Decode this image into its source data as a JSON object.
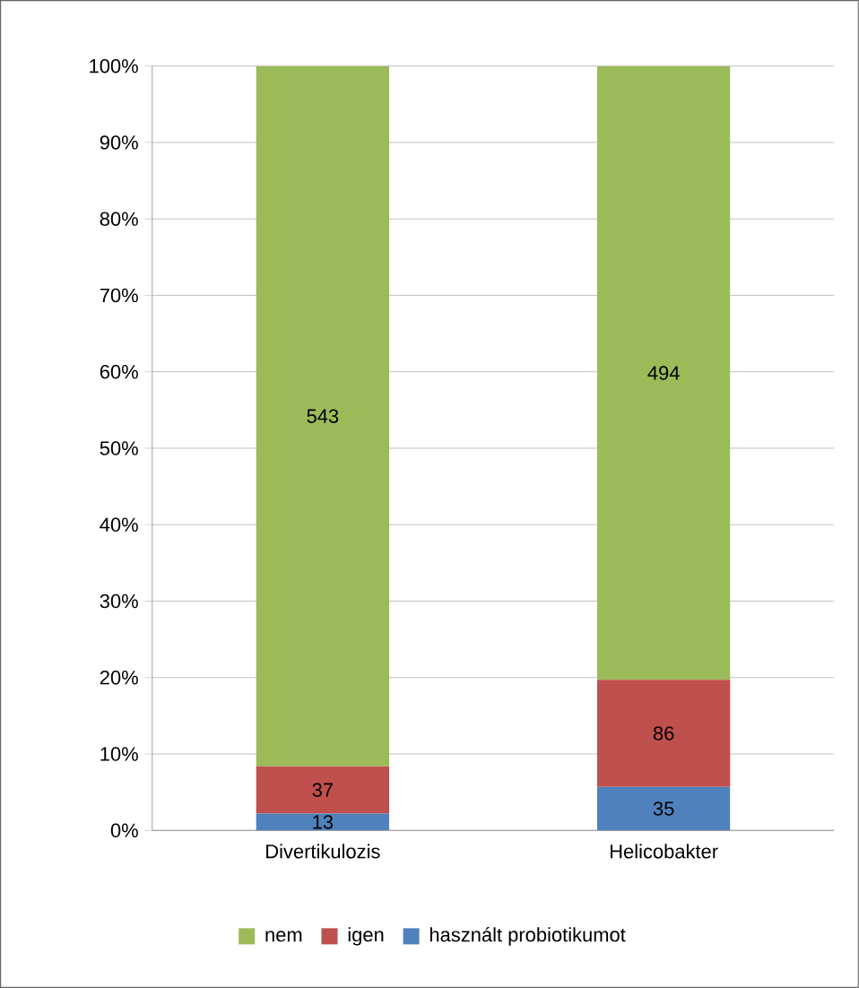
{
  "chart_data": {
    "type": "bar",
    "stacked": true,
    "categories": [
      "Divertikulozis",
      "Helicobakter"
    ],
    "series": [
      {
        "name": "használt probiotikumot",
        "color": "#4f81bd",
        "values": [
          2.2,
          5.7
        ]
      },
      {
        "name": "igen",
        "color": "#c0504d",
        "values": [
          6.2,
          14.0
        ]
      },
      {
        "name": "nem",
        "color": "#9bbb59",
        "values": [
          91.6,
          80.3
        ]
      }
    ],
    "annotations": [
      "13",
      "37",
      "543",
      "35",
      "86",
      "494"
    ],
    "ylim": [
      0,
      100
    ],
    "yticks": [
      {
        "value": 0,
        "label": "0%"
      },
      {
        "value": 10,
        "label": "10%"
      },
      {
        "value": 20,
        "label": "20%"
      },
      {
        "value": 30,
        "label": "30%"
      },
      {
        "value": 40,
        "label": "40%"
      },
      {
        "value": 50,
        "label": "50%"
      },
      {
        "value": 60,
        "label": "60%"
      },
      {
        "value": 70,
        "label": "70%"
      },
      {
        "value": 80,
        "label": "80%"
      },
      {
        "value": 90,
        "label": "90%"
      },
      {
        "value": 100,
        "label": "100%"
      }
    ],
    "grid": "y",
    "legend": "bottom"
  }
}
